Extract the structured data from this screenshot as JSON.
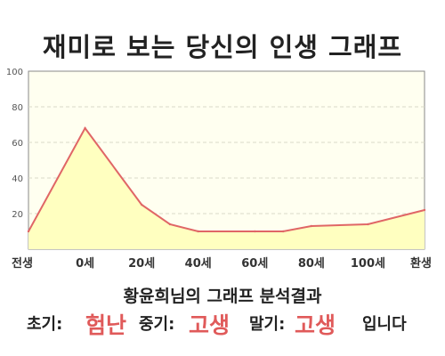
{
  "header": {
    "title": "재미로 보는 당신의 인생 그래프"
  },
  "chart_data": {
    "type": "area",
    "title": "재미로 보는 당신의 인생 그래프",
    "xlabel": "",
    "ylabel": "",
    "x_ticks": [
      "전생",
      "0세",
      "20세",
      "40세",
      "60세",
      "80세",
      "100세",
      "환생"
    ],
    "y_ticks": [
      "20",
      "40",
      "60",
      "80",
      "100"
    ],
    "ylim": [
      0,
      100
    ],
    "grid": true,
    "points": [
      {
        "x": "전생",
        "y": 10
      },
      {
        "x": "0세",
        "y": 68
      },
      {
        "x": "20세",
        "y": 25
      },
      {
        "x": "30세",
        "y": 14
      },
      {
        "x": "40세",
        "y": 10
      },
      {
        "x": "60세",
        "y": 10
      },
      {
        "x": "70세",
        "y": 10
      },
      {
        "x": "80세",
        "y": 13
      },
      {
        "x": "100세",
        "y": 14
      },
      {
        "x": "환생",
        "y": 22
      }
    ],
    "line_color": "#e06666",
    "fill_color": "#ffffc0",
    "plot_bg": "#fffff0"
  },
  "result": {
    "heading": "황윤희님의 그래프 분석결과",
    "early_label": "초기:",
    "early_value": "험난",
    "middle_label": "중기:",
    "middle_value": "고생",
    "late_label": "말기:",
    "late_value": "고생",
    "suffix": "입니다"
  }
}
